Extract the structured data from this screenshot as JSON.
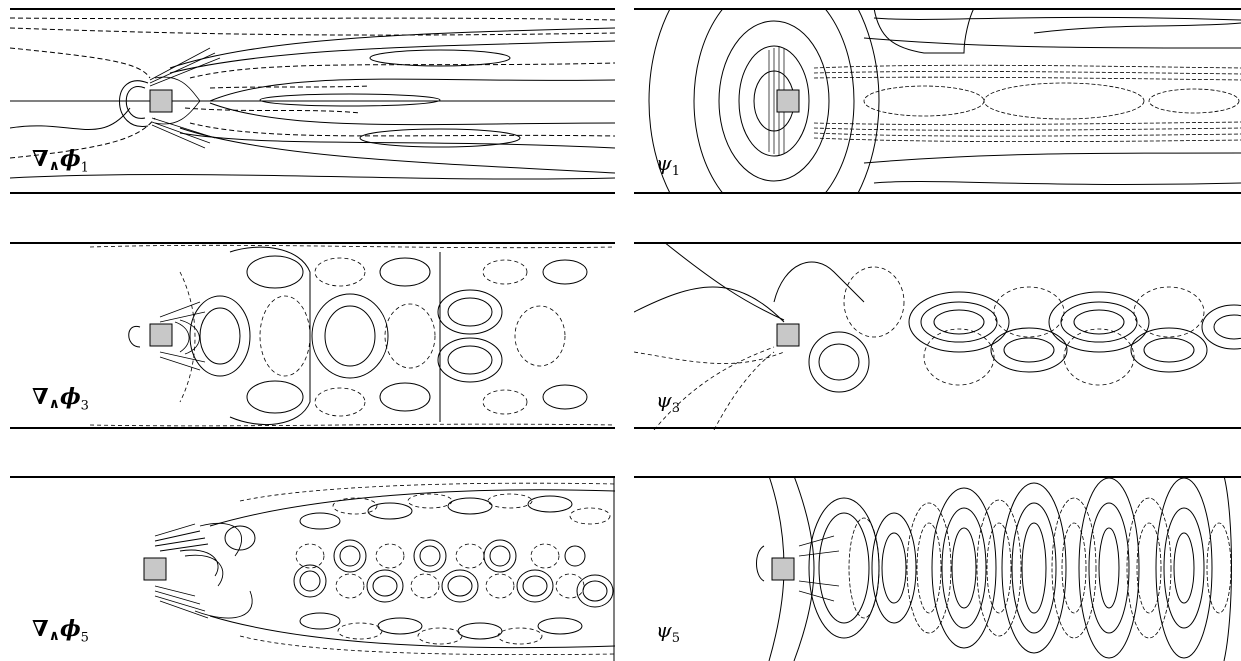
{
  "figure": {
    "panels": [
      {
        "id": "p1",
        "symbol": "∇",
        "op": "∧",
        "var": "ϕ",
        "sub": "1",
        "style": "vector"
      },
      {
        "id": "p2",
        "symbol": "",
        "op": "",
        "var": "ψ",
        "sub": "1",
        "style": "scalar"
      },
      {
        "id": "p3",
        "symbol": "∇",
        "op": "∧",
        "var": "ϕ",
        "sub": "3",
        "style": "vector"
      },
      {
        "id": "p4",
        "symbol": "",
        "op": "",
        "var": "ψ",
        "sub": "3",
        "style": "scalar"
      },
      {
        "id": "p5",
        "symbol": "∇",
        "op": "∧",
        "var": "ϕ",
        "sub": "5",
        "style": "vector"
      },
      {
        "id": "p6",
        "symbol": "",
        "op": "",
        "var": "ψ",
        "sub": "5",
        "style": "scalar"
      }
    ]
  },
  "colors": {
    "line": "#000000",
    "obstacle": "#c8c8c8",
    "background": "#ffffff"
  }
}
